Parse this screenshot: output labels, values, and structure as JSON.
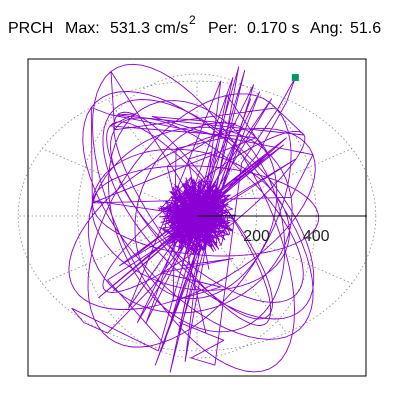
{
  "header": {
    "station": "PRCH",
    "max_label": "Max:",
    "max_value": "531.3 cm/s",
    "max_exp": "2",
    "per_label": "Per:",
    "per_value": "0.170 s",
    "ang_label": "Ang:",
    "ang_value": "51.6"
  },
  "colors": {
    "trace": "#8a00d4",
    "marker": "#009966",
    "grid": "#888888"
  },
  "chart_data": {
    "type": "line",
    "title": "",
    "plot_kind": "polar particle motion (acceleration orbit)",
    "units": "cm/s^2",
    "max_amplitude": 531.3,
    "period_s": 0.17,
    "angle_deg": 51.6,
    "grid_rings": [
      200,
      400,
      600
    ],
    "tick_labels": [
      "200",
      "400"
    ],
    "tick_values": [
      200,
      400
    ],
    "xlim": [
      -560,
      560
    ],
    "ylim": [
      -530,
      530
    ],
    "grid": true,
    "marker_point": {
      "x": 330,
      "y": 390
    },
    "series": [
      {
        "values_xy": [
          [
            0,
            0
          ],
          [
            30,
            40
          ],
          [
            -60,
            20
          ],
          [
            80,
            -50
          ],
          [
            -40,
            -80
          ],
          [
            60,
            90
          ],
          [
            -90,
            -30
          ],
          [
            40,
            60
          ],
          [
            -70,
            50
          ],
          [
            90,
            -20
          ],
          [
            -20,
            70
          ],
          [
            50,
            -90
          ],
          [
            -80,
            -10
          ],
          [
            70,
            40
          ],
          [
            -30,
            -60
          ],
          [
            20,
            80
          ],
          [
            -60,
            -70
          ],
          [
            100,
            30
          ],
          [
            -50,
            10
          ],
          [
            40,
            -40
          ],
          [
            150,
            260
          ],
          [
            -120,
            -380
          ],
          [
            180,
            330
          ],
          [
            -140,
            -420
          ],
          [
            210,
            350
          ],
          [
            -170,
            -300
          ],
          [
            120,
            390
          ],
          [
            -90,
            -440
          ],
          [
            160,
            410
          ],
          [
            -110,
            -360
          ],
          [
            -300,
            -180
          ],
          [
            330,
            160
          ],
          [
            -260,
            -140
          ],
          [
            290,
            200
          ],
          [
            -330,
            -230
          ],
          [
            260,
            190
          ],
          [
            -220,
            -120
          ],
          [
            300,
            220
          ],
          [
            -280,
            -210
          ],
          [
            240,
            170
          ],
          [
            100,
            340
          ],
          [
            -60,
            -330
          ],
          [
            190,
            370
          ],
          [
            -200,
            -300
          ],
          [
            250,
            330
          ],
          [
            -230,
            -260
          ],
          [
            80,
            380
          ],
          [
            -40,
            -410
          ],
          [
            140,
            420
          ],
          [
            -130,
            -380
          ],
          [
            -420,
            -260
          ],
          [
            -380,
            -300
          ],
          [
            -300,
            -330
          ],
          [
            -150,
            -200
          ],
          [
            20,
            0
          ],
          [
            200,
            170
          ],
          [
            300,
            320
          ],
          [
            330,
            390
          ],
          [
            270,
            300
          ],
          [
            150,
            150
          ],
          [
            60,
            -420
          ],
          [
            -20,
            -400
          ],
          [
            90,
            -350
          ],
          [
            -60,
            -300
          ],
          [
            30,
            -330
          ],
          [
            -100,
            140
          ],
          [
            130,
            260
          ],
          [
            -150,
            280
          ],
          [
            90,
            220
          ],
          [
            -70,
            190
          ],
          [
            -80,
            -240
          ],
          [
            80,
            -200
          ],
          [
            -120,
            -160
          ],
          [
            120,
            -120
          ],
          [
            -50,
            -140
          ],
          [
            50,
            180
          ],
          [
            -30,
            160
          ],
          [
            40,
            -150
          ],
          [
            -20,
            110
          ],
          [
            10,
            -90
          ],
          [
            -60,
            60
          ],
          [
            40,
            -50
          ],
          [
            -30,
            30
          ],
          [
            20,
            -20
          ],
          [
            -10,
            10
          ],
          [
            0,
            0
          ]
        ]
      }
    ]
  }
}
